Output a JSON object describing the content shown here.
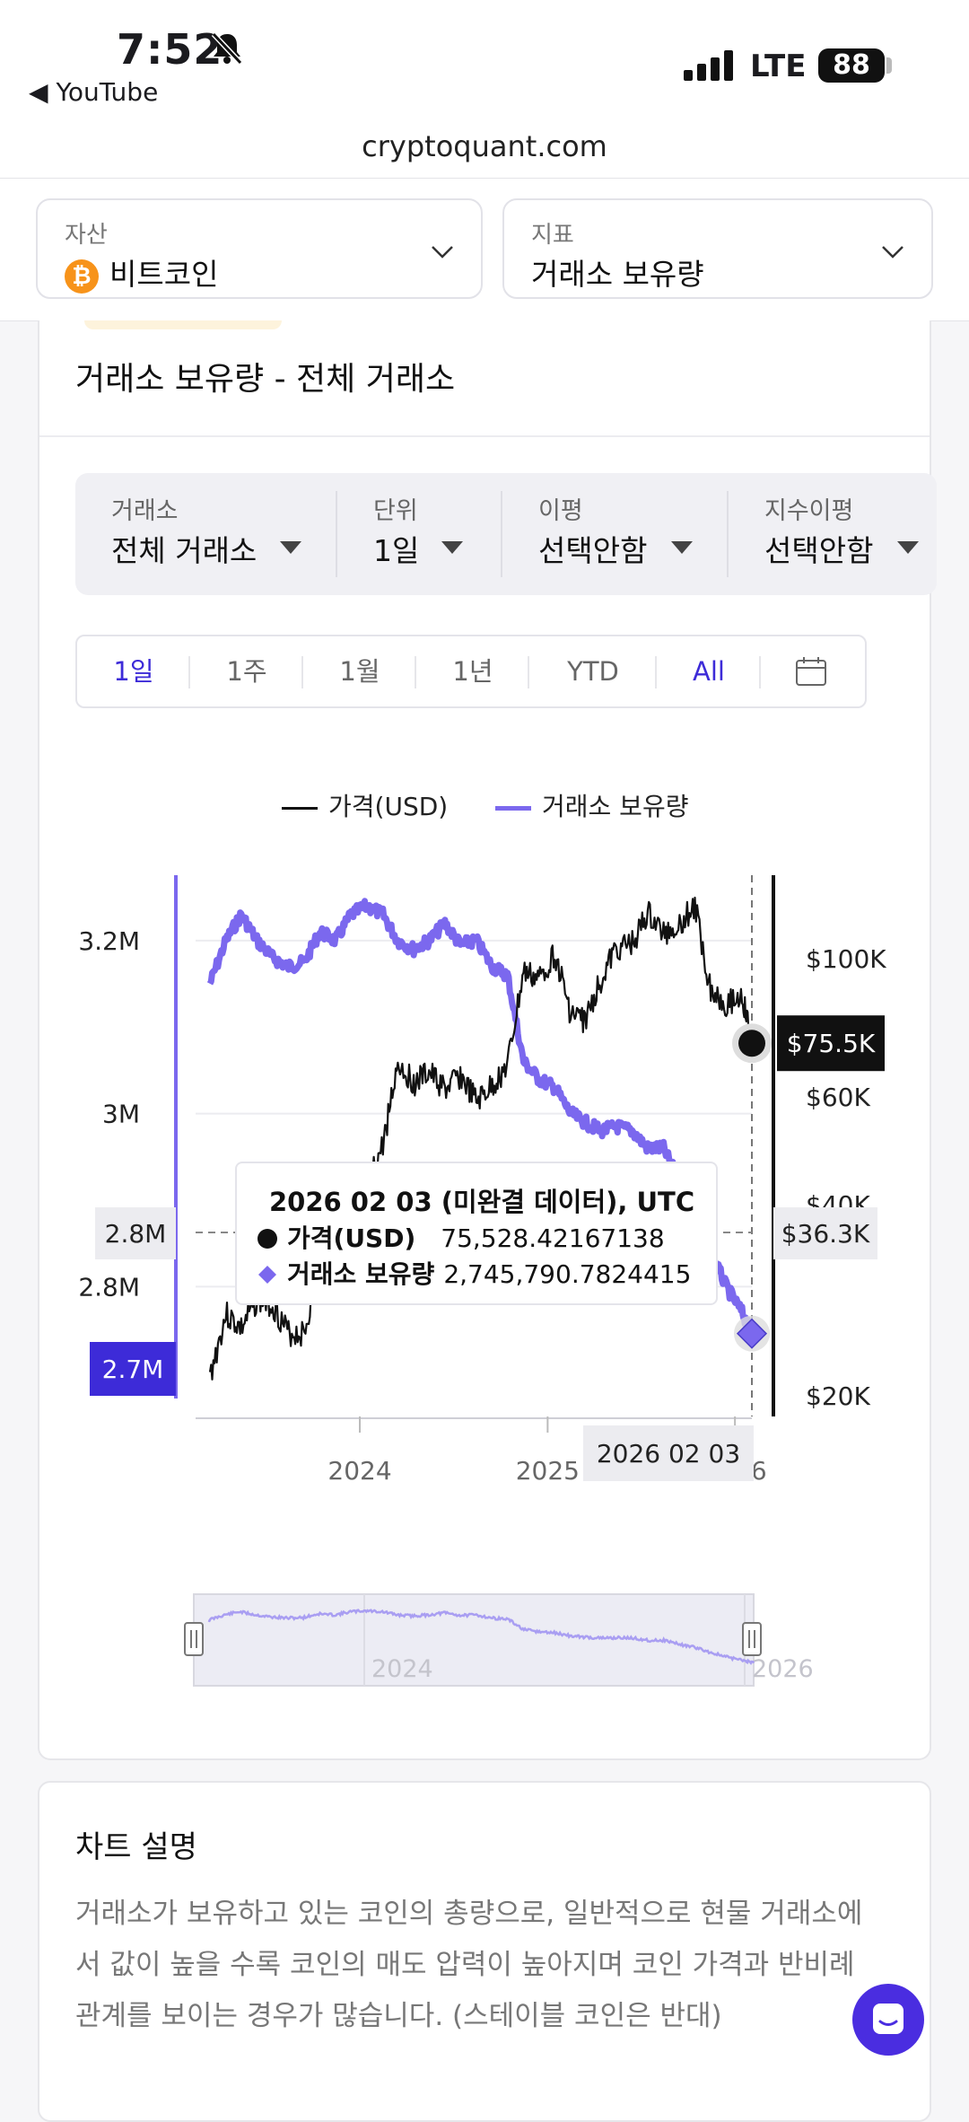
{
  "status_bar": {
    "time": "7:52",
    "back_app": "YouTube",
    "network": "LTE",
    "battery": "88"
  },
  "browser": {
    "url": "cryptoquant.com"
  },
  "selectors": {
    "asset_label": "자산",
    "asset_value": "비트코인",
    "asset_icon": "bitcoin-icon",
    "metric_label": "지표",
    "metric_value": "거래소 보유량"
  },
  "card": {
    "title": "거래소 보유량 - 전체 거래소"
  },
  "filters": [
    {
      "label": "거래소",
      "value": "전체 거래소"
    },
    {
      "label": "단위",
      "value": "1일"
    },
    {
      "label": "이평",
      "value": "선택안함"
    },
    {
      "label": "지수이평",
      "value": "선택안함"
    }
  ],
  "ranges": {
    "items": [
      "1일",
      "1주",
      "1월",
      "1년",
      "YTD",
      "All"
    ],
    "active": [
      "1일",
      "All"
    ]
  },
  "chart_data": {
    "type": "line",
    "legend": {
      "placement": "top-center"
    },
    "x_ticks": [
      "2024",
      "2025",
      "2026"
    ],
    "y_left_ticks": [
      "3.2M",
      "3M",
      "2.8M"
    ],
    "y_right_ticks": [
      "$100K",
      "$60K",
      "$40K",
      "$20K"
    ],
    "series": [
      {
        "name": "가격(USD)",
        "color": "#111111",
        "axis": "right",
        "x": [
          "2023-03",
          "2023-04",
          "2023-05",
          "2023-06",
          "2023-07",
          "2023-08",
          "2023-09",
          "2023-10",
          "2023-11",
          "2023-12",
          "2024-01",
          "2024-02",
          "2024-03",
          "2024-04",
          "2024-05",
          "2024-06",
          "2024-07",
          "2024-08",
          "2024-09",
          "2024-10",
          "2024-11",
          "2024-12",
          "2025-01",
          "2025-02",
          "2025-03",
          "2025-04",
          "2025-05",
          "2025-06",
          "2025-07",
          "2025-08",
          "2025-09",
          "2025-10",
          "2025-11",
          "2025-12",
          "2026-01",
          "2026-02-03"
        ],
        "values": [
          22000,
          28500,
          27000,
          30000,
          29500,
          26500,
          26500,
          34000,
          37500,
          42500,
          43000,
          51000,
          70000,
          64000,
          67000,
          62000,
          66000,
          59000,
          63000,
          69000,
          96000,
          94000,
          102000,
          84000,
          82000,
          94000,
          104000,
          106000,
          118000,
          110000,
          114000,
          121000,
          91000,
          87000,
          89000,
          75528
        ]
      },
      {
        "name": "거래소 보유량",
        "color": "#7b68ee",
        "axis": "left",
        "x": [
          "2023-03",
          "2023-04",
          "2023-05",
          "2023-06",
          "2023-07",
          "2023-08",
          "2023-09",
          "2023-10",
          "2023-11",
          "2023-12",
          "2024-01",
          "2024-02",
          "2024-03",
          "2024-04",
          "2024-05",
          "2024-06",
          "2024-07",
          "2024-08",
          "2024-09",
          "2024-10",
          "2024-11",
          "2024-12",
          "2025-01",
          "2025-02",
          "2025-03",
          "2025-04",
          "2025-05",
          "2025-06",
          "2025-07",
          "2025-08",
          "2025-09",
          "2025-10",
          "2025-11",
          "2025-12",
          "2026-01",
          "2026-02-03"
        ],
        "values": [
          3150000,
          3200000,
          3230000,
          3200000,
          3180000,
          3170000,
          3175000,
          3210000,
          3200000,
          3230000,
          3240000,
          3230000,
          3200000,
          3190000,
          3200000,
          3220000,
          3195000,
          3200000,
          3170000,
          3160000,
          3060000,
          3040000,
          3030000,
          3000000,
          2990000,
          2980000,
          2985000,
          2980000,
          2960000,
          2960000,
          2920000,
          2890000,
          2840000,
          2800000,
          2770000,
          2745790
        ]
      }
    ],
    "crosshair": {
      "date": "2026 02 03",
      "price_tag": "$75.5K",
      "left_value_tag": "2.8M",
      "right_value_tag": "$36.3K",
      "reserve_tag": "2.7M"
    },
    "tooltip": {
      "title": "2026 02 03 (미완결 데이터), UTC",
      "rows": [
        {
          "label": "가격(USD)",
          "value": "75,528.42167138"
        },
        {
          "label": "거래소 보유량",
          "value": "2,745,790.7824415"
        }
      ]
    },
    "navigator": {
      "labels": [
        "2024",
        "2026"
      ]
    }
  },
  "description": {
    "title": "차트 설명",
    "text": "거래소가 보유하고 있는 코인의 총량으로, 일반적으로 현물 거래소에서 값이 높을 수록 코인의 매도 압력이 높아지며 코인 가격과 반비례 관계를 보이는 경우가 많습니다. (스테이블 코인은 반대)"
  }
}
